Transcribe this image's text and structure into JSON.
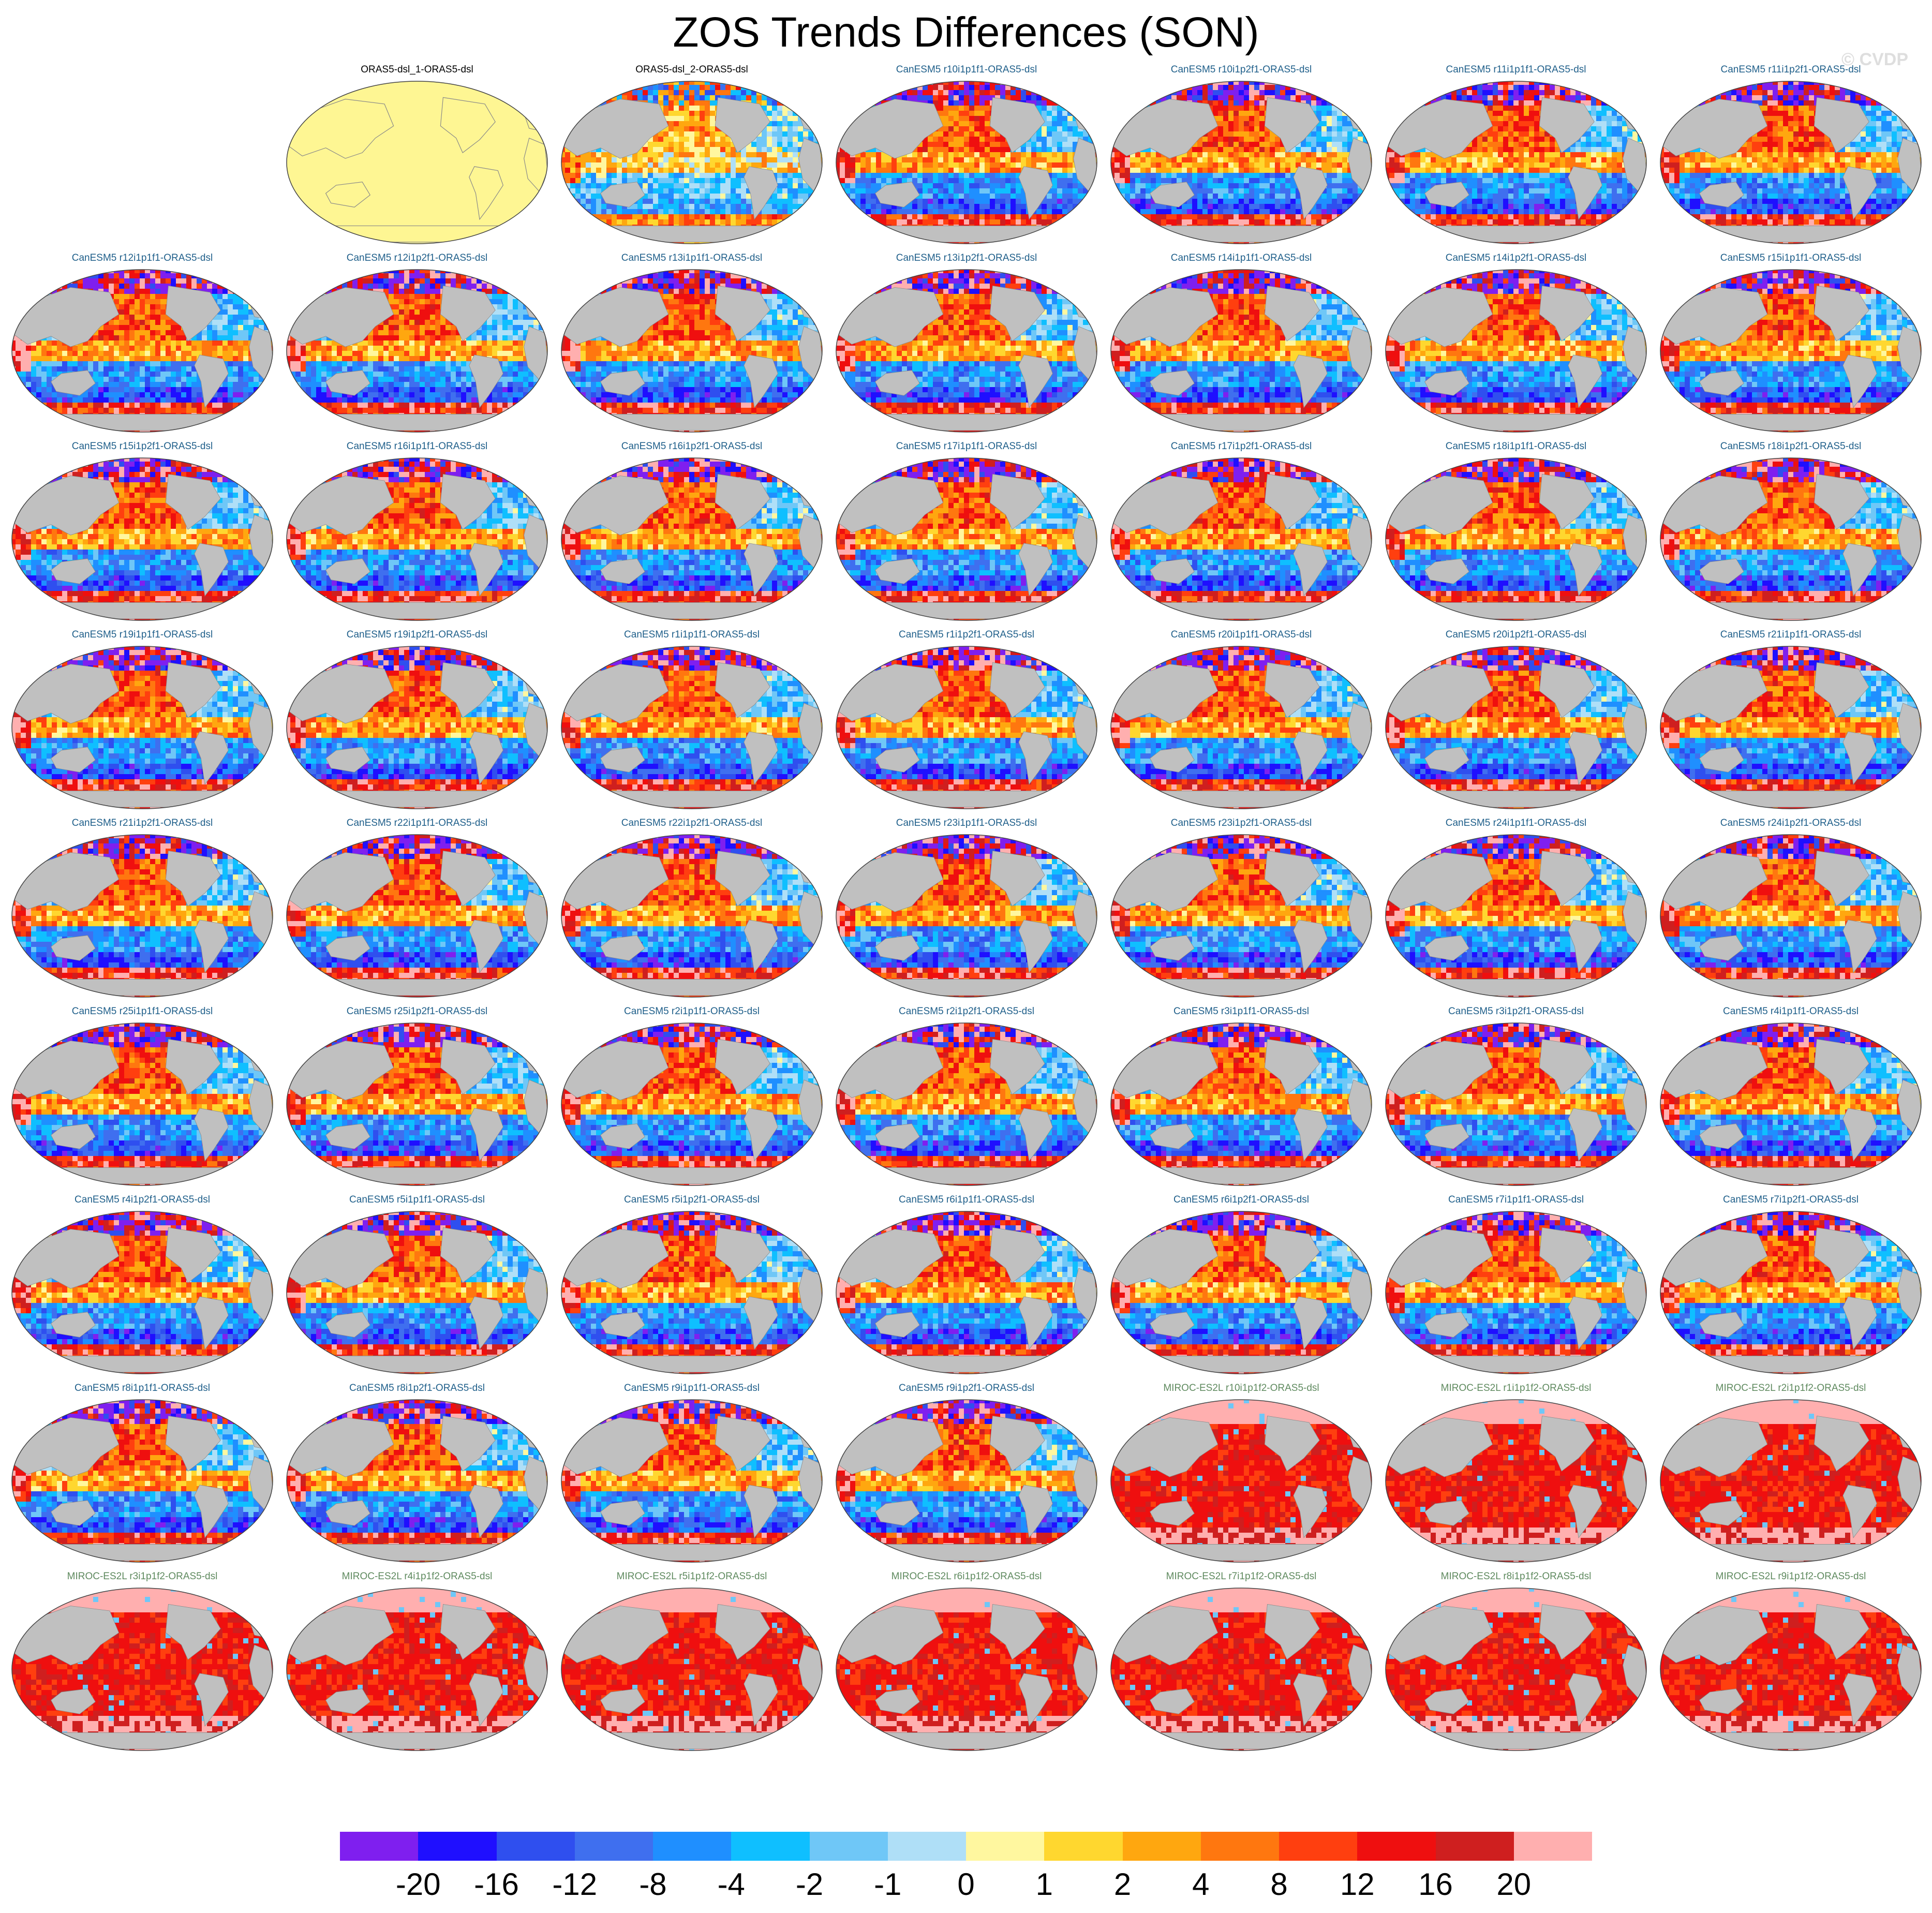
{
  "title": "ZOS Trends Differences (SON)",
  "copyright": "© CVDP",
  "colors": {
    "land": "#c0c0c0",
    "land_stroke": "#8a8a8a",
    "flat_yellow": "#fef693",
    "obs_label": "#000000",
    "canesm_label": "#1f5f8a",
    "miroc_label": "#5f8a5f"
  },
  "panels": [
    {
      "label": "",
      "model": "blank"
    },
    {
      "label": "ORAS5-dsl_1-ORAS5-dsl",
      "model": "flat"
    },
    {
      "label": "ORAS5-dsl_2-ORAS5-dsl",
      "model": "obs2"
    },
    {
      "label": "CanESM5 r10i1p1f1-ORAS5-dsl",
      "model": "canesm"
    },
    {
      "label": "CanESM5 r10i1p2f1-ORAS5-dsl",
      "model": "canesm"
    },
    {
      "label": "CanESM5 r11i1p1f1-ORAS5-dsl",
      "model": "canesm"
    },
    {
      "label": "CanESM5 r11i1p2f1-ORAS5-dsl",
      "model": "canesm"
    },
    {
      "label": "CanESM5 r12i1p1f1-ORAS5-dsl",
      "model": "canesm"
    },
    {
      "label": "CanESM5 r12i1p2f1-ORAS5-dsl",
      "model": "canesm"
    },
    {
      "label": "CanESM5 r13i1p1f1-ORAS5-dsl",
      "model": "canesm"
    },
    {
      "label": "CanESM5 r13i1p2f1-ORAS5-dsl",
      "model": "canesm"
    },
    {
      "label": "CanESM5 r14i1p1f1-ORAS5-dsl",
      "model": "canesm"
    },
    {
      "label": "CanESM5 r14i1p2f1-ORAS5-dsl",
      "model": "canesm"
    },
    {
      "label": "CanESM5 r15i1p1f1-ORAS5-dsl",
      "model": "canesm"
    },
    {
      "label": "CanESM5 r15i1p2f1-ORAS5-dsl",
      "model": "canesm"
    },
    {
      "label": "CanESM5 r16i1p1f1-ORAS5-dsl",
      "model": "canesm"
    },
    {
      "label": "CanESM5 r16i1p2f1-ORAS5-dsl",
      "model": "canesm"
    },
    {
      "label": "CanESM5 r17i1p1f1-ORAS5-dsl",
      "model": "canesm"
    },
    {
      "label": "CanESM5 r17i1p2f1-ORAS5-dsl",
      "model": "canesm"
    },
    {
      "label": "CanESM5 r18i1p1f1-ORAS5-dsl",
      "model": "canesm"
    },
    {
      "label": "CanESM5 r18i1p2f1-ORAS5-dsl",
      "model": "canesm"
    },
    {
      "label": "CanESM5 r19i1p1f1-ORAS5-dsl",
      "model": "canesm"
    },
    {
      "label": "CanESM5 r19i1p2f1-ORAS5-dsl",
      "model": "canesm"
    },
    {
      "label": "CanESM5 r1i1p1f1-ORAS5-dsl",
      "model": "canesm"
    },
    {
      "label": "CanESM5 r1i1p2f1-ORAS5-dsl",
      "model": "canesm"
    },
    {
      "label": "CanESM5 r20i1p1f1-ORAS5-dsl",
      "model": "canesm"
    },
    {
      "label": "CanESM5 r20i1p2f1-ORAS5-dsl",
      "model": "canesm"
    },
    {
      "label": "CanESM5 r21i1p1f1-ORAS5-dsl",
      "model": "canesm"
    },
    {
      "label": "CanESM5 r21i1p2f1-ORAS5-dsl",
      "model": "canesm"
    },
    {
      "label": "CanESM5 r22i1p1f1-ORAS5-dsl",
      "model": "canesm"
    },
    {
      "label": "CanESM5 r22i1p2f1-ORAS5-dsl",
      "model": "canesm"
    },
    {
      "label": "CanESM5 r23i1p1f1-ORAS5-dsl",
      "model": "canesm"
    },
    {
      "label": "CanESM5 r23i1p2f1-ORAS5-dsl",
      "model": "canesm"
    },
    {
      "label": "CanESM5 r24i1p1f1-ORAS5-dsl",
      "model": "canesm"
    },
    {
      "label": "CanESM5 r24i1p2f1-ORAS5-dsl",
      "model": "canesm"
    },
    {
      "label": "CanESM5 r25i1p1f1-ORAS5-dsl",
      "model": "canesm"
    },
    {
      "label": "CanESM5 r25i1p2f1-ORAS5-dsl",
      "model": "canesm"
    },
    {
      "label": "CanESM5 r2i1p1f1-ORAS5-dsl",
      "model": "canesm"
    },
    {
      "label": "CanESM5 r2i1p2f1-ORAS5-dsl",
      "model": "canesm"
    },
    {
      "label": "CanESM5 r3i1p1f1-ORAS5-dsl",
      "model": "canesm"
    },
    {
      "label": "CanESM5 r3i1p2f1-ORAS5-dsl",
      "model": "canesm"
    },
    {
      "label": "CanESM5 r4i1p1f1-ORAS5-dsl",
      "model": "canesm"
    },
    {
      "label": "CanESM5 r4i1p2f1-ORAS5-dsl",
      "model": "canesm"
    },
    {
      "label": "CanESM5 r5i1p1f1-ORAS5-dsl",
      "model": "canesm"
    },
    {
      "label": "CanESM5 r5i1p2f1-ORAS5-dsl",
      "model": "canesm"
    },
    {
      "label": "CanESM5 r6i1p1f1-ORAS5-dsl",
      "model": "canesm"
    },
    {
      "label": "CanESM5 r6i1p2f1-ORAS5-dsl",
      "model": "canesm"
    },
    {
      "label": "CanESM5 r7i1p1f1-ORAS5-dsl",
      "model": "canesm"
    },
    {
      "label": "CanESM5 r7i1p2f1-ORAS5-dsl",
      "model": "canesm"
    },
    {
      "label": "CanESM5 r8i1p1f1-ORAS5-dsl",
      "model": "canesm"
    },
    {
      "label": "CanESM5 r8i1p2f1-ORAS5-dsl",
      "model": "canesm"
    },
    {
      "label": "CanESM5 r9i1p1f1-ORAS5-dsl",
      "model": "canesm"
    },
    {
      "label": "CanESM5 r9i1p2f1-ORAS5-dsl",
      "model": "canesm"
    },
    {
      "label": "MIROC-ES2L r10i1p1f2-ORAS5-dsl",
      "model": "miroc"
    },
    {
      "label": "MIROC-ES2L r1i1p1f2-ORAS5-dsl",
      "model": "miroc"
    },
    {
      "label": "MIROC-ES2L r2i1p1f2-ORAS5-dsl",
      "model": "miroc"
    },
    {
      "label": "MIROC-ES2L r3i1p1f2-ORAS5-dsl",
      "model": "miroc"
    },
    {
      "label": "MIROC-ES2L r4i1p1f2-ORAS5-dsl",
      "model": "miroc"
    },
    {
      "label": "MIROC-ES2L r5i1p1f2-ORAS5-dsl",
      "model": "miroc"
    },
    {
      "label": "MIROC-ES2L r6i1p1f2-ORAS5-dsl",
      "model": "miroc"
    },
    {
      "label": "MIROC-ES2L r7i1p1f2-ORAS5-dsl",
      "model": "miroc"
    },
    {
      "label": "MIROC-ES2L r8i1p1f2-ORAS5-dsl",
      "model": "miroc"
    },
    {
      "label": "MIROC-ES2L r9i1p1f2-ORAS5-dsl",
      "model": "miroc"
    }
  ],
  "colorbar": {
    "colors": [
      "#7f1fef",
      "#1f0fff",
      "#2f4fef",
      "#3f6fef",
      "#1f8fff",
      "#0fbfff",
      "#6fc7f7",
      "#afdff7",
      "#fff79f",
      "#ffd72f",
      "#ffa70f",
      "#ff770f",
      "#ff3f0f",
      "#ef0f0f",
      "#cf1f1f",
      "#ffafaf"
    ],
    "labels": [
      "-20",
      "-16",
      "-12",
      "-8",
      "-4",
      "-2",
      "-1",
      "0",
      "1",
      "2",
      "4",
      "8",
      "12",
      "16",
      "20"
    ]
  }
}
